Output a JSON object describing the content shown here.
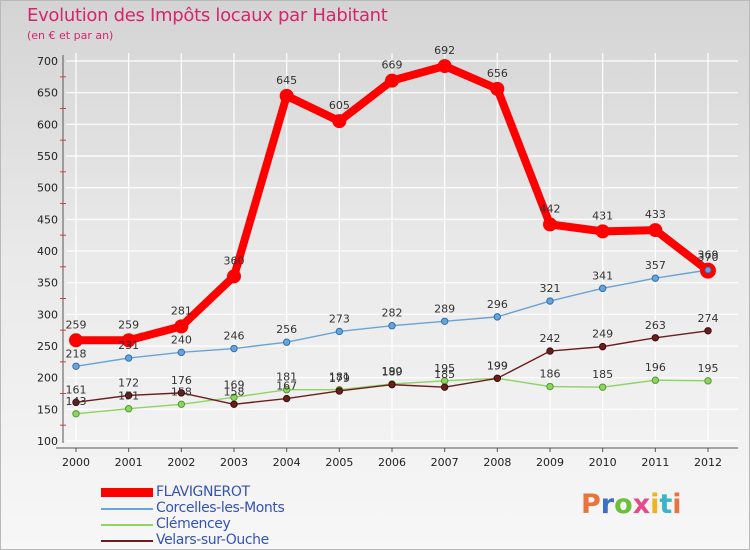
{
  "header": {
    "title": "Evolution des Impôts locaux par Habitant",
    "subtitle": "(en € et par an)"
  },
  "brand": {
    "text": "Proxiti",
    "letters": [
      "P",
      "r",
      "o",
      "x",
      "i",
      "t",
      "i"
    ]
  },
  "chart_data": {
    "type": "line",
    "title": "Evolution des Impôts locaux par Habitant",
    "subtitle": "(en € et par an)",
    "xlabel": "",
    "ylabel": "",
    "x": [
      "2000",
      "2001",
      "2002",
      "2003",
      "2004",
      "2005",
      "2006",
      "2007",
      "2008",
      "2009",
      "2010",
      "2011",
      "2012"
    ],
    "ylim": [
      100,
      700
    ],
    "yticks": [
      100,
      150,
      200,
      250,
      300,
      350,
      400,
      450,
      500,
      550,
      600,
      650,
      700
    ],
    "grid": true,
    "legend_position": "bottom-left",
    "series": [
      {
        "name": "FLAVIGNEROT",
        "color": "#ff0000",
        "values": [
          259,
          259,
          281,
          360,
          645,
          605,
          669,
          692,
          656,
          442,
          431,
          433,
          369
        ]
      },
      {
        "name": "Corcelles-les-Monts",
        "color": "#6aa3d8",
        "values": [
          218,
          231,
          240,
          246,
          256,
          273,
          282,
          289,
          296,
          321,
          341,
          357,
          370
        ]
      },
      {
        "name": "Clémencey",
        "color": "#8fd462",
        "values": [
          143,
          151,
          158,
          169,
          181,
          181,
          190,
          195,
          199,
          186,
          185,
          196,
          195
        ]
      },
      {
        "name": "Velars-sur-Ouche",
        "color": "#6b1e1e",
        "values": [
          161,
          172,
          176,
          158,
          167,
          179,
          189,
          185,
          199,
          242,
          249,
          263,
          274
        ]
      }
    ]
  }
}
